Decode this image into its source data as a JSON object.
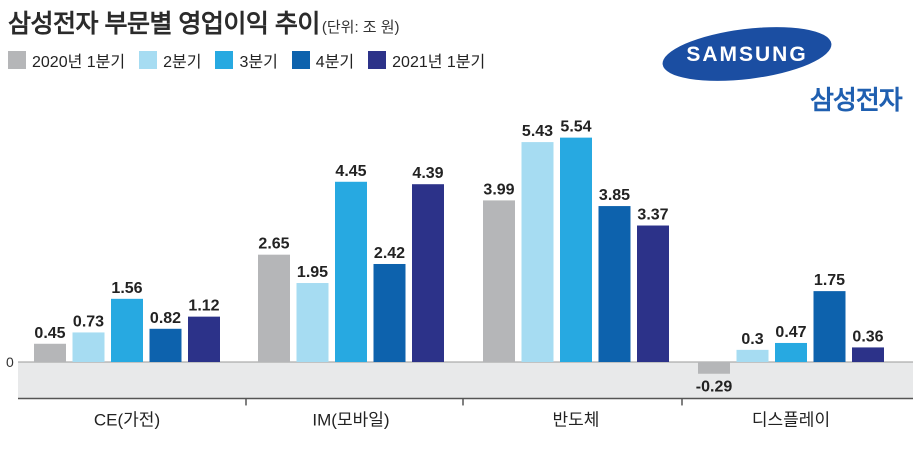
{
  "title": "삼성전자 부문별 영업이익 추이",
  "unit_note": "(단위: 조 원)",
  "brand": {
    "logo_text": "SAMSUNG",
    "name_kr": "삼성전자"
  },
  "colors": {
    "q1_2020": "#b5b6b8",
    "q2_2020": "#a6dcf2",
    "q3_2020": "#27a9e1",
    "q4_2020": "#0d62ad",
    "q1_2021": "#2c3289",
    "negative_band": "#e8e9ea",
    "logo": "#1b4ea2"
  },
  "chart_data": {
    "type": "bar",
    "categories": [
      "CE(가전)",
      "IM(모바일)",
      "반도체",
      "디스플레이"
    ],
    "series": [
      {
        "name": "2020년 1분기",
        "values": [
          0.45,
          2.65,
          3.99,
          -0.29
        ]
      },
      {
        "name": "2분기",
        "values": [
          0.73,
          1.95,
          5.43,
          0.3
        ]
      },
      {
        "name": "3분기",
        "values": [
          1.56,
          4.45,
          5.54,
          0.47
        ]
      },
      {
        "name": "4분기",
        "values": [
          0.82,
          2.42,
          3.85,
          1.75
        ]
      },
      {
        "name": "2021년 1분기",
        "values": [
          1.12,
          4.39,
          3.37,
          0.36
        ]
      }
    ],
    "labels": [
      [
        "0.45",
        "2.65",
        "3.99",
        "-0.29"
      ],
      [
        "0.73",
        "1.95",
        "5.43",
        "0.3"
      ],
      [
        "1.56",
        "4.45",
        "5.54",
        "0.47"
      ],
      [
        "0.82",
        "2.42",
        "3.85",
        "1.75"
      ],
      [
        "1.12",
        "4.39",
        "3.37",
        "0.36"
      ]
    ],
    "y_tick_label": "0",
    "ylim": [
      -0.9,
      6.3
    ],
    "legend_position": "top-left"
  }
}
